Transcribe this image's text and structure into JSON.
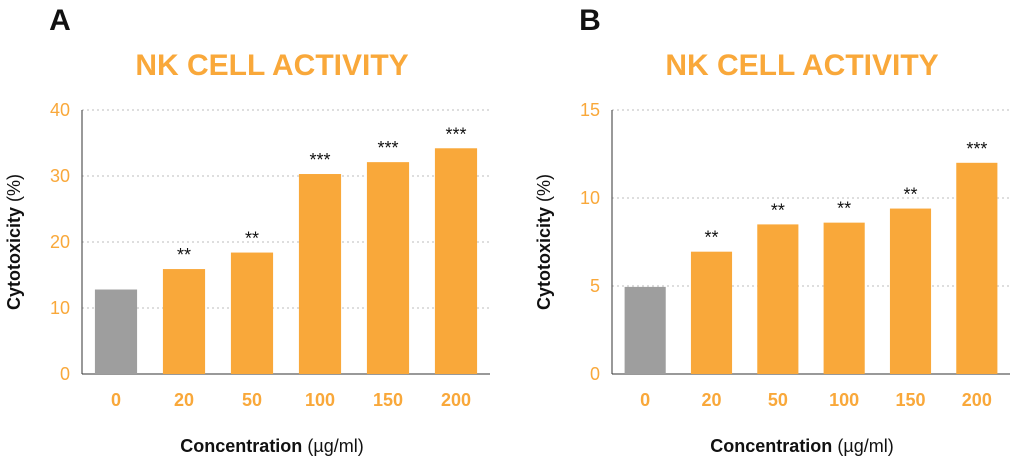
{
  "chart_data": [
    {
      "type": "bar",
      "panel": "A",
      "title": "NK CELL ACTIVITY",
      "xlabel": "Concentration",
      "xlabel_unit": "(µg/ml)",
      "ylabel": "Cytotoxicity",
      "ylabel_unit": "(%)",
      "ylim": [
        0,
        40
      ],
      "yticks": [
        0,
        10,
        20,
        30,
        40
      ],
      "grid": true,
      "categories": [
        "0",
        "20",
        "50",
        "100",
        "150",
        "200"
      ],
      "values": [
        12.8,
        15.9,
        18.4,
        30.3,
        32.1,
        34.2
      ],
      "significance": [
        "",
        "**",
        "**",
        "***",
        "***",
        "***"
      ],
      "colors": [
        "#9E9E9E",
        "#F9A83A",
        "#F9A83A",
        "#F9A83A",
        "#F9A83A",
        "#F9A83A"
      ]
    },
    {
      "type": "bar",
      "panel": "B",
      "title": "NK CELL ACTIVITY",
      "xlabel": "Concentration",
      "xlabel_unit": "(µg/ml)",
      "ylabel": "Cytotoxicity",
      "ylabel_unit": "(%)",
      "ylim": [
        0,
        15
      ],
      "yticks": [
        0,
        5,
        10,
        15
      ],
      "grid": true,
      "categories": [
        "0",
        "20",
        "50",
        "100",
        "150",
        "200"
      ],
      "values": [
        4.95,
        6.95,
        8.5,
        8.6,
        9.4,
        12.0
      ],
      "significance": [
        "",
        "**",
        "**",
        "**",
        "**",
        "***"
      ],
      "colors": [
        "#9E9E9E",
        "#F9A83A",
        "#F9A83A",
        "#F9A83A",
        "#F9A83A",
        "#F9A83A"
      ]
    }
  ],
  "style": {
    "accent": "#F9A83A",
    "control": "#9E9E9E",
    "text": "#111111"
  }
}
